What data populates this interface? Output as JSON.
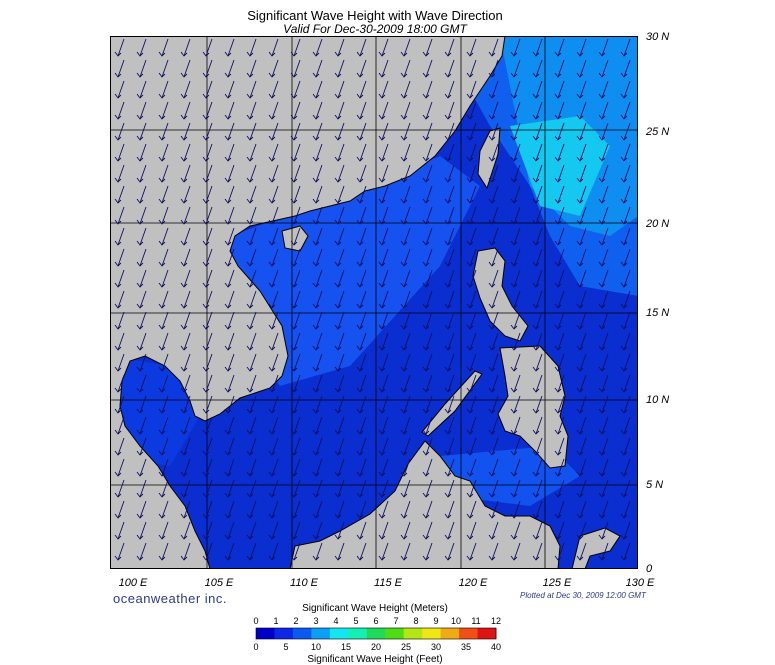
{
  "title": "Significant Wave Height with Wave Direction",
  "subtitle": "Valid For Dec-30-2009 18:00 GMT",
  "brand": "oceanweather inc.",
  "plotted": "Plotted at Dec 30, 2009 12:00 GMT",
  "lat_labels": [
    "30 N",
    "25 N",
    "20 N",
    "15 N",
    "10 N",
    "5 N",
    "0"
  ],
  "lon_labels": [
    "100 E",
    "105 E",
    "110 E",
    "115 E",
    "120 E",
    "125 E",
    "130 E"
  ],
  "legend": {
    "meters_title": "Significant Wave Height (Meters)",
    "feet_title": "Significant Wave Height (Feet)",
    "meters_ticks": [
      "0",
      "1",
      "2",
      "3",
      "4",
      "5",
      "6",
      "7",
      "8",
      "9",
      "10",
      "11",
      "12"
    ],
    "feet_ticks": [
      "0",
      "5",
      "10",
      "15",
      "20",
      "25",
      "30",
      "35",
      "40"
    ],
    "colors": [
      "#0000c8",
      "#0a28e6",
      "#0a5af0",
      "#0aa0f5",
      "#14e6f0",
      "#14f0b4",
      "#1edc5a",
      "#50dc14",
      "#b4e614",
      "#f0e614",
      "#f0aa14",
      "#f05014",
      "#dc1414"
    ]
  },
  "colors": {
    "land": "#c0c0c0",
    "deep": "#0a2ed0",
    "mid": "#1060f0",
    "high": "#10c8f0",
    "arrow": "#101060"
  }
}
